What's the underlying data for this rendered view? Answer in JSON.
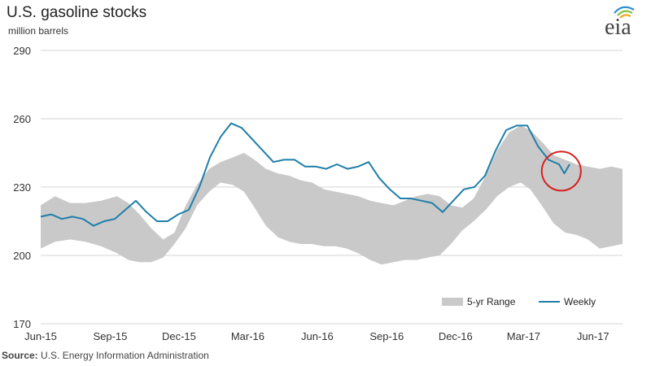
{
  "title": "U.S. gasoline stocks",
  "subtitle": "million barrels",
  "logo_text": "eia",
  "source_label": "Source:",
  "source_text": "U.S. Energy Information Administration",
  "colors": {
    "weekly": "#1f7fa8",
    "range": "#c9c9c9",
    "grid": "#d4d4d4",
    "highlight": "#d62020"
  },
  "chart_data": {
    "type": "line",
    "title": "U.S. gasoline stocks",
    "ylabel": "million barrels",
    "ylim": [
      170,
      290
    ],
    "yticks": [
      170,
      200,
      230,
      260,
      290
    ],
    "xlim": [
      "2015-06-01",
      "2017-07-10"
    ],
    "xticks": [
      {
        "date": "2015-06-01",
        "label": "Jun-15"
      },
      {
        "date": "2015-09-01",
        "label": "Sep-15"
      },
      {
        "date": "2015-12-01",
        "label": "Dec-15"
      },
      {
        "date": "2016-03-01",
        "label": "Mar-16"
      },
      {
        "date": "2016-06-01",
        "label": "Jun-16"
      },
      {
        "date": "2016-09-01",
        "label": "Sep-16"
      },
      {
        "date": "2016-12-01",
        "label": "Dec-16"
      },
      {
        "date": "2017-03-01",
        "label": "Mar-17"
      },
      {
        "date": "2017-06-01",
        "label": "Jun-17"
      }
    ],
    "grid": true,
    "legend": "bottom-right",
    "series": [
      {
        "name": "5-yr Range",
        "kind": "band",
        "x": [
          "2015-06-01",
          "2015-06-20",
          "2015-07-10",
          "2015-07-30",
          "2015-08-20",
          "2015-09-10",
          "2015-09-25",
          "2015-10-10",
          "2015-10-25",
          "2015-11-10",
          "2015-11-25",
          "2015-12-10",
          "2015-12-25",
          "2016-01-10",
          "2016-01-25",
          "2016-02-10",
          "2016-02-25",
          "2016-03-10",
          "2016-03-25",
          "2016-04-10",
          "2016-04-25",
          "2016-05-10",
          "2016-05-25",
          "2016-06-10",
          "2016-06-25",
          "2016-07-10",
          "2016-07-25",
          "2016-08-10",
          "2016-08-25",
          "2016-09-10",
          "2016-09-25",
          "2016-10-10",
          "2016-10-25",
          "2016-11-10",
          "2016-11-25",
          "2016-12-10",
          "2016-12-25",
          "2017-01-10",
          "2017-01-25",
          "2017-02-10",
          "2017-02-25",
          "2017-03-10",
          "2017-03-25",
          "2017-04-10",
          "2017-04-25",
          "2017-05-10",
          "2017-05-25",
          "2017-06-10",
          "2017-06-25",
          "2017-07-10"
        ],
        "high": [
          222,
          226,
          223,
          223,
          224,
          226,
          223,
          218,
          212,
          207,
          210,
          222,
          231,
          238,
          241,
          243,
          245,
          242,
          238,
          236,
          235,
          233,
          232,
          229,
          228,
          227,
          226,
          224,
          223,
          222,
          224,
          226,
          227,
          226,
          222,
          221,
          225,
          235,
          246,
          254,
          257,
          255,
          250,
          244,
          242,
          240,
          239,
          238,
          239,
          238
        ],
        "low": [
          203,
          206,
          207,
          206,
          204,
          201,
          198,
          197,
          197,
          199,
          205,
          212,
          222,
          228,
          232,
          231,
          228,
          221,
          213,
          208,
          206,
          205,
          205,
          204,
          204,
          203,
          201,
          198,
          196,
          197,
          198,
          198,
          199,
          200,
          205,
          211,
          215,
          220,
          226,
          230,
          232,
          229,
          222,
          214,
          210,
          209,
          207,
          203,
          204,
          205
        ]
      },
      {
        "name": "Weekly",
        "kind": "line",
        "x": [
          "2015-06-01",
          "2015-06-15",
          "2015-06-29",
          "2015-07-13",
          "2015-07-27",
          "2015-08-10",
          "2015-08-24",
          "2015-09-07",
          "2015-09-21",
          "2015-10-05",
          "2015-10-19",
          "2015-11-02",
          "2015-11-16",
          "2015-11-30",
          "2015-12-14",
          "2015-12-28",
          "2016-01-11",
          "2016-01-25",
          "2016-02-08",
          "2016-02-22",
          "2016-03-07",
          "2016-03-21",
          "2016-04-04",
          "2016-04-18",
          "2016-05-02",
          "2016-05-16",
          "2016-05-30",
          "2016-06-13",
          "2016-06-27",
          "2016-07-11",
          "2016-07-25",
          "2016-08-08",
          "2016-08-22",
          "2016-09-05",
          "2016-09-19",
          "2016-10-03",
          "2016-10-17",
          "2016-10-31",
          "2016-11-14",
          "2016-11-28",
          "2016-12-12",
          "2016-12-26",
          "2017-01-09",
          "2017-01-23",
          "2017-02-06",
          "2017-02-20",
          "2017-03-06",
          "2017-03-20",
          "2017-04-03",
          "2017-04-17",
          "2017-04-24",
          "2017-05-01"
        ],
        "values": [
          217,
          218,
          216,
          217,
          216,
          213,
          215,
          216,
          220,
          224,
          219,
          215,
          215,
          218,
          220,
          230,
          243,
          252,
          258,
          256,
          251,
          246,
          241,
          242,
          242,
          239,
          239,
          238,
          240,
          238,
          239,
          241,
          234,
          229,
          225,
          225,
          224,
          223,
          219,
          224,
          229,
          230,
          235,
          246,
          255,
          257,
          257,
          248,
          242,
          240,
          236,
          240
        ]
      }
    ],
    "annotations": [
      {
        "type": "circle",
        "x": "2017-04-20",
        "y": 237
      }
    ]
  }
}
